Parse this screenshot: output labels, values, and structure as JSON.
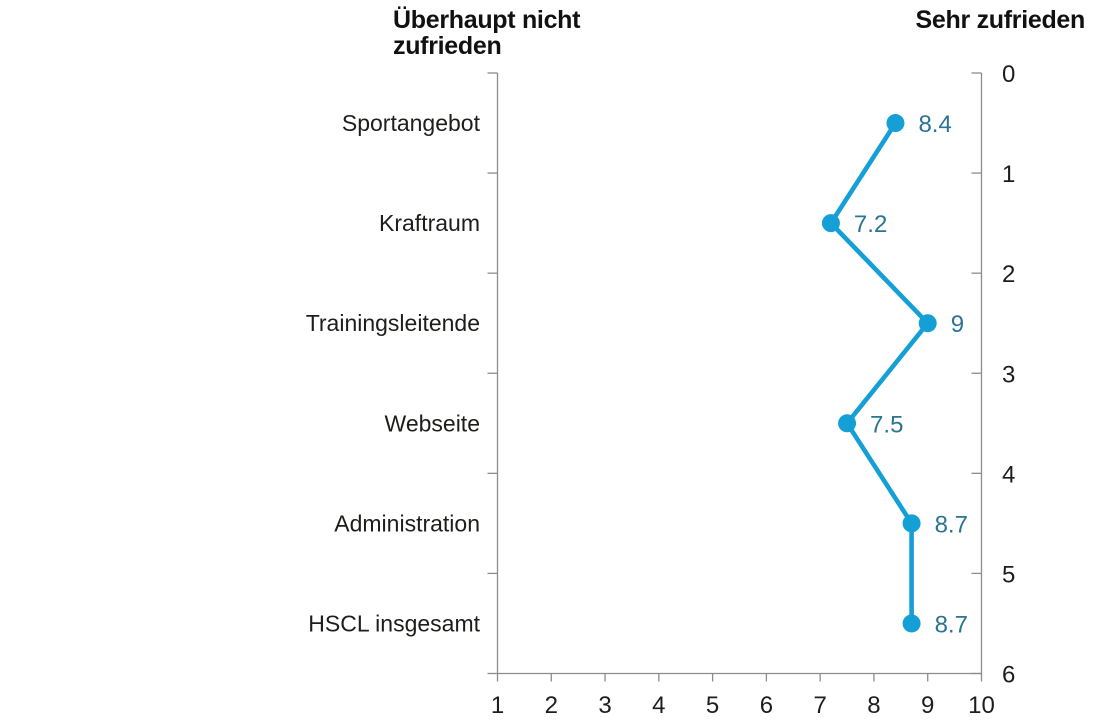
{
  "chart_data": {
    "type": "line",
    "orientation": "vertical_category_axis",
    "title_left": "Überhaupt nicht zufrieden",
    "title_right": "Sehr zufrieden",
    "categories": [
      "Sportangebot",
      "Kraftraum",
      "Trainingsleitende",
      "Webseite",
      "Administration",
      "HSCL insgesamt"
    ],
    "values": [
      8.4,
      7.2,
      9,
      7.5,
      8.7,
      8.7
    ],
    "value_labels": [
      "8.4",
      "7.2",
      "9",
      "7.5",
      "8.7",
      "8.7"
    ],
    "xlim": [
      1,
      10
    ],
    "x_ticks": [
      "1",
      "2",
      "3",
      "4",
      "5",
      "6",
      "7",
      "8",
      "9",
      "10"
    ],
    "right_axis_ticks": [
      "0",
      "1",
      "2",
      "3",
      "4",
      "5",
      "6"
    ],
    "grid": false,
    "legend": false,
    "colors": {
      "series": "#149fd6",
      "value_label": "#2b7492",
      "axis": "#8c8c8c",
      "tick_text": "#1d1d1b",
      "category_text": "#1d1d1b"
    }
  }
}
